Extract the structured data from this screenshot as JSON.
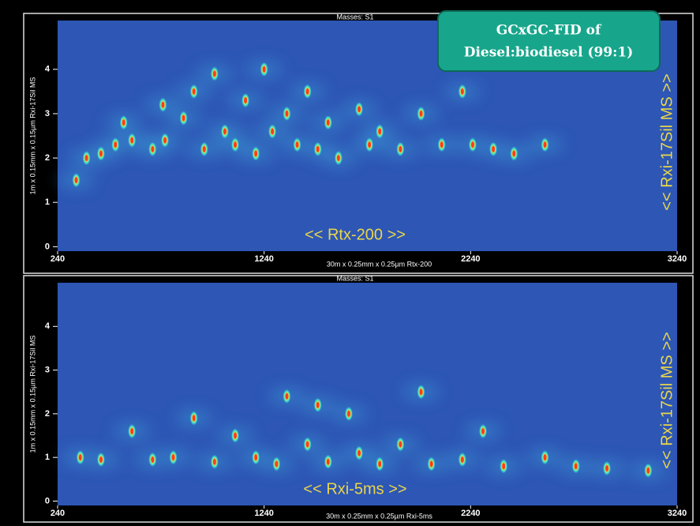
{
  "title_box": [
    "GCxGC-FID of",
    "Diesel:biodiesel (99:1)"
  ],
  "chart_data": [
    {
      "type": "scatter",
      "title": "Masses: S1",
      "x_label": "30m x 0.25mm x 0.25µm Rtx-200",
      "y_label": "1m x 0.15mm x 0.15µm Rxi-17Sil MS",
      "annotation_x": "<< Rtx-200 >>",
      "annotation_y": "<< Rxi-17Sil MS >>",
      "x": [
        330,
        380,
        450,
        520,
        560,
        600,
        700,
        750,
        760,
        850,
        900,
        950,
        1000,
        1050,
        1100,
        1150,
        1200,
        1240,
        1280,
        1350,
        1400,
        1450,
        1500,
        1550,
        1600,
        1700,
        1750,
        1800,
        1900,
        2000,
        2100,
        2200,
        2250,
        2350,
        2450,
        2600
      ],
      "values": [
        1.5,
        2.0,
        2.1,
        2.3,
        2.8,
        2.4,
        2.2,
        3.2,
        2.4,
        2.9,
        3.5,
        2.2,
        3.9,
        2.6,
        2.3,
        3.3,
        2.1,
        4.0,
        2.6,
        3.0,
        2.3,
        3.5,
        2.2,
        2.8,
        2.0,
        3.1,
        2.3,
        2.6,
        2.2,
        3.0,
        2.3,
        3.5,
        2.3,
        2.2,
        2.1,
        2.3
      ],
      "color": "#ff3b1f",
      "xlim": [
        240,
        3240
      ],
      "ylim": [
        -0.1,
        5.1
      ],
      "xticks": [
        240,
        1240,
        2240,
        3240
      ],
      "yticks": [
        0,
        1,
        2,
        3,
        4
      ]
    },
    {
      "type": "scatter",
      "title": "Masses: S1",
      "x_label": "30m x 0.25mm x 0.25µm Rxi-5ms",
      "y_label": "1m x 0.15mm x 0.15µm Rxi-17Sil MS",
      "annotation_x": "<< Rxi-5ms >>",
      "annotation_y": "<< Rxi-17Sil MS >>",
      "x": [
        350,
        450,
        600,
        700,
        800,
        900,
        1000,
        1100,
        1200,
        1300,
        1350,
        1450,
        1500,
        1550,
        1650,
        1700,
        1800,
        1900,
        2000,
        2050,
        2200,
        2300,
        2400,
        2600,
        2750,
        2900,
        3100
      ],
      "values": [
        1.0,
        0.95,
        1.6,
        0.95,
        1.0,
        1.9,
        0.9,
        1.5,
        1.0,
        0.85,
        2.4,
        1.3,
        2.2,
        0.9,
        2.0,
        1.1,
        0.85,
        1.3,
        2.5,
        0.85,
        0.95,
        1.6,
        0.8,
        1.0,
        0.8,
        0.75,
        0.7
      ],
      "color": "#ff3b1f",
      "xlim": [
        240,
        3240
      ],
      "ylim": [
        -0.1,
        5.0
      ],
      "xticks": [
        240,
        1240,
        2240,
        3240
      ],
      "yticks": [
        0,
        1,
        2,
        3,
        4
      ]
    }
  ]
}
